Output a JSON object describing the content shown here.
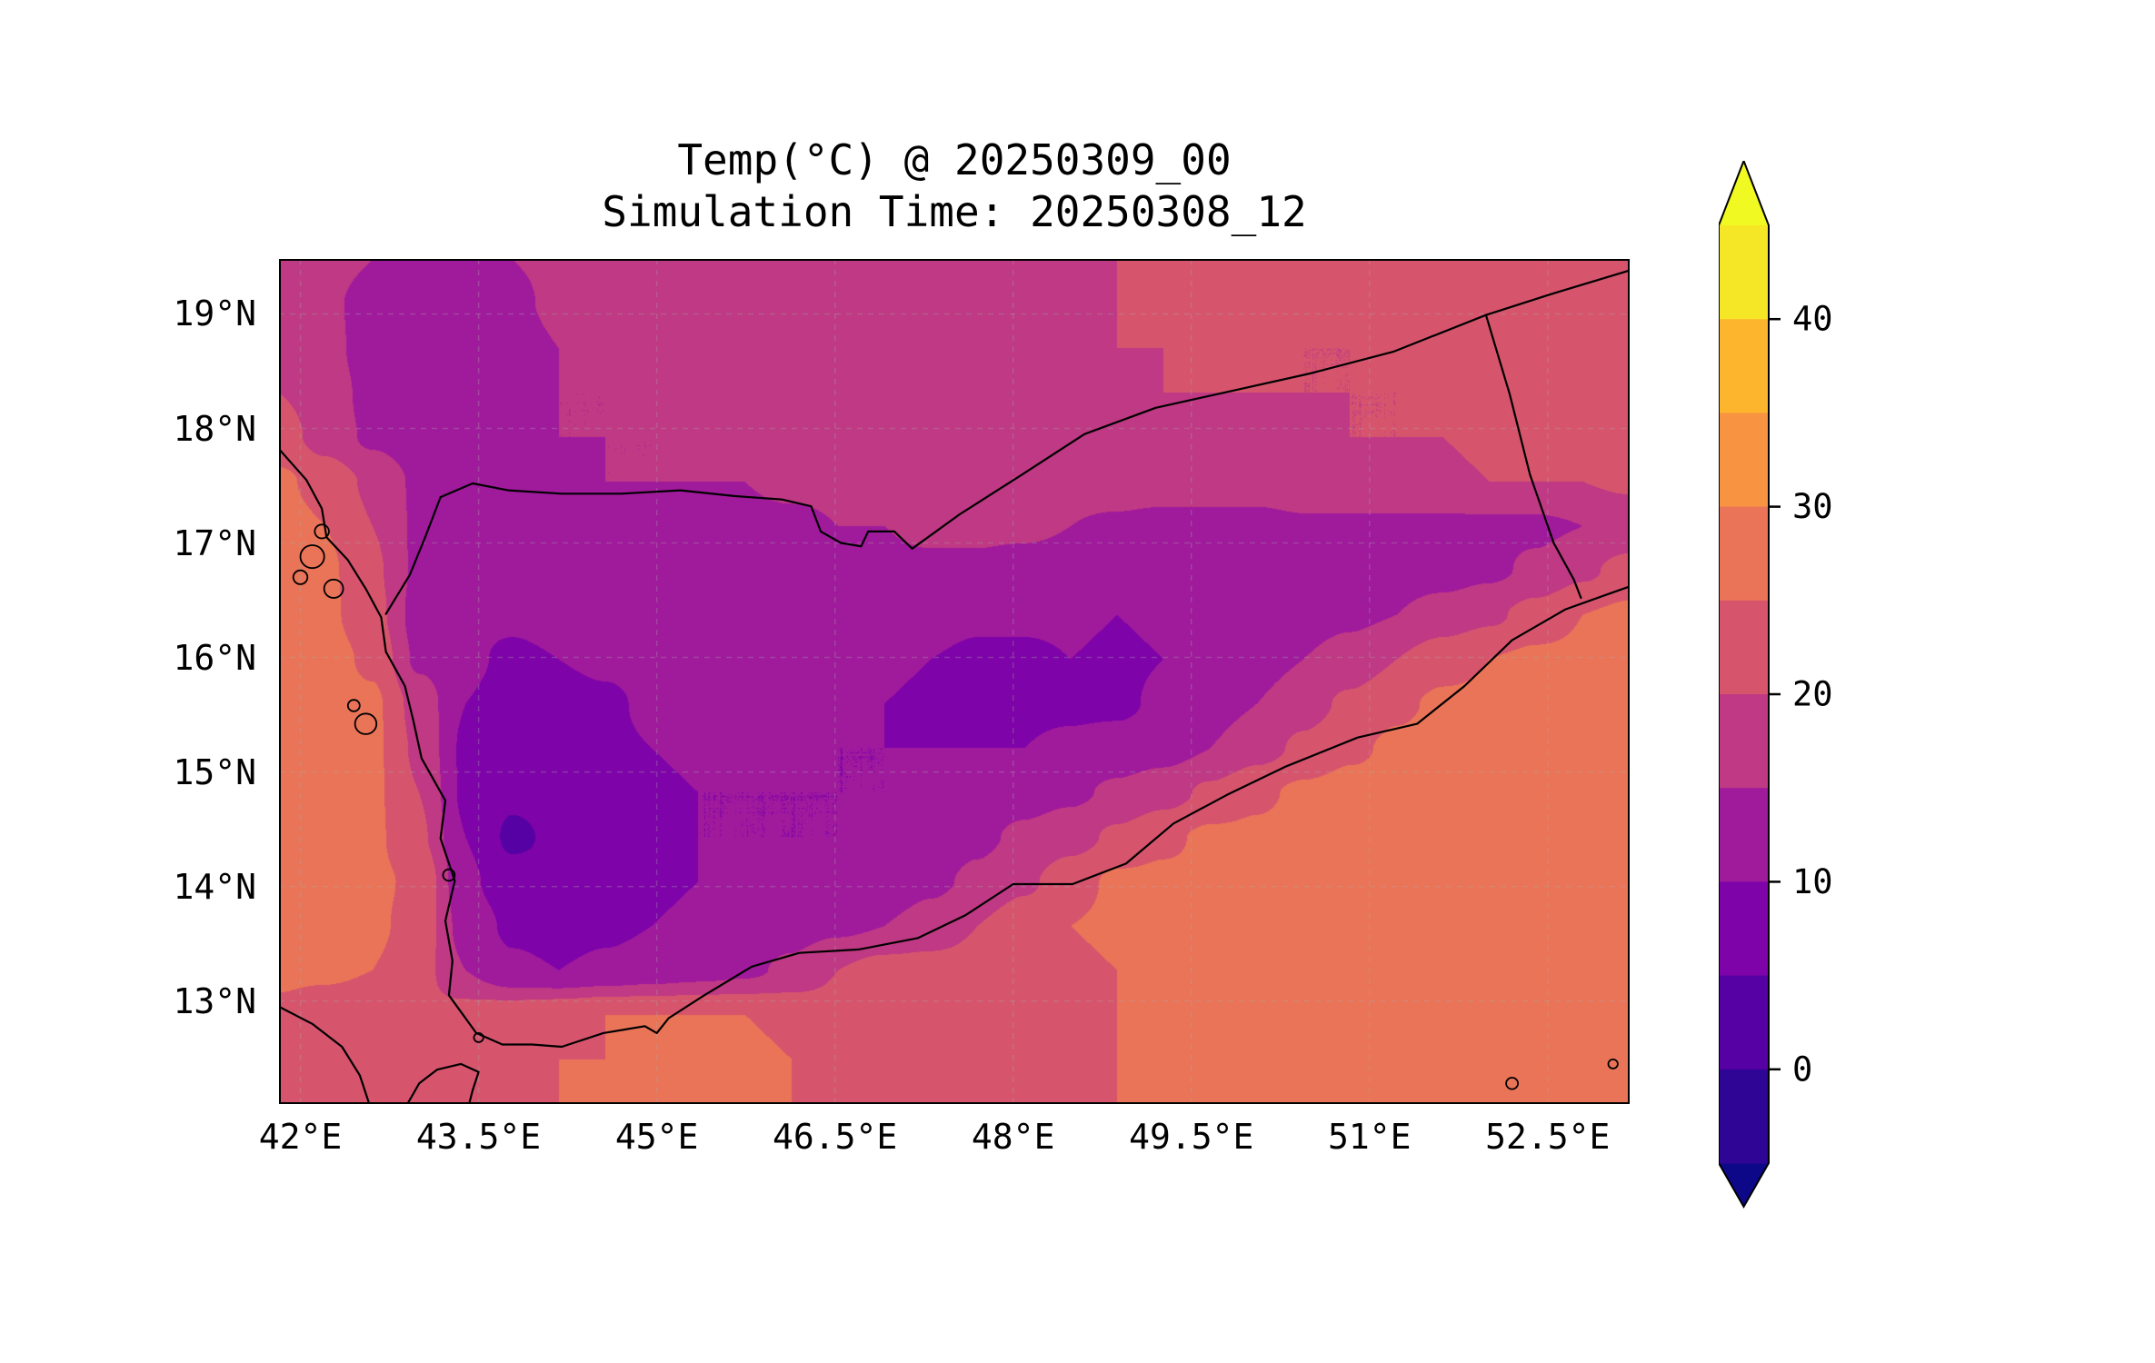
{
  "figure": {
    "title_line1": "Temp(°C) @ 20250309_00",
    "title_line2": "Simulation Time: 20250308_12"
  },
  "chart_data": {
    "type": "heatmap",
    "title": "Temp(°C) @ 20250309_00",
    "subtitle": "Simulation Time: 20250308_12",
    "projection": "lon-lat map, filled temperature contours with coastlines and country borders",
    "lon_range": [
      41.82,
      53.19
    ],
    "lat_range": [
      12.1,
      19.48
    ],
    "x_ticks": [
      {
        "lon": 42.0,
        "label": "42°E"
      },
      {
        "lon": 43.5,
        "label": "43.5°E"
      },
      {
        "lon": 45.0,
        "label": "45°E"
      },
      {
        "lon": 46.5,
        "label": "46.5°E"
      },
      {
        "lon": 48.0,
        "label": "48°E"
      },
      {
        "lon": 49.5,
        "label": "49.5°E"
      },
      {
        "lon": 51.0,
        "label": "51°E"
      },
      {
        "lon": 52.5,
        "label": "52.5°E"
      }
    ],
    "y_ticks": [
      {
        "lat": 19.0,
        "label": "19°N"
      },
      {
        "lat": 18.0,
        "label": "18°N"
      },
      {
        "lat": 17.0,
        "label": "17°N"
      },
      {
        "lat": 16.0,
        "label": "16°N"
      },
      {
        "lat": 15.0,
        "label": "15°N"
      },
      {
        "lat": 14.0,
        "label": "14°N"
      },
      {
        "lat": 13.0,
        "label": "13°N"
      }
    ],
    "levels": [
      -5,
      0,
      5,
      10,
      15,
      20,
      25,
      30,
      35,
      40,
      45
    ],
    "band_colors": [
      "#2f0596",
      "#5601a4",
      "#7e03a8",
      "#a01a9c",
      "#bf3984",
      "#d6556d",
      "#ea7457",
      "#f89441",
      "#fdb52e",
      "#f6e726"
    ],
    "under_color": "#0d0887",
    "over_color": "#f0f921",
    "colorbar_ticks": [
      0,
      10,
      20,
      30,
      40
    ],
    "colorbar_tick_labels": [
      "0",
      "10",
      "20",
      "30",
      "40"
    ],
    "grid": {
      "nx": 30,
      "ny": 20,
      "note": "temperature °C, rows north(19.48N) to south(12.10N), cols west(41.82E) to east(53.19E)",
      "values": [
        [
          18,
          17,
          15,
          13,
          13,
          15,
          16,
          17,
          17,
          17,
          17,
          17,
          17,
          18,
          18,
          19,
          19,
          20,
          20,
          21,
          21,
          21,
          22,
          21,
          21,
          22,
          22,
          22,
          22,
          22
        ],
        [
          18,
          16,
          13,
          11,
          12,
          14,
          16,
          16,
          16,
          17,
          17,
          17,
          17,
          17,
          18,
          18,
          19,
          19,
          20,
          21,
          22,
          21,
          21,
          20,
          20,
          21,
          22,
          22,
          22,
          22
        ],
        [
          19,
          17,
          12,
          10,
          11,
          13,
          15,
          16,
          16,
          16,
          16,
          16,
          17,
          17,
          18,
          18,
          19,
          19,
          20,
          20,
          21,
          21,
          20,
          20,
          21,
          21,
          21,
          22,
          22,
          22
        ],
        [
          20,
          18,
          13,
          11,
          12,
          14,
          15,
          15,
          16,
          16,
          16,
          16,
          16,
          17,
          17,
          18,
          18,
          19,
          19,
          20,
          20,
          20,
          20,
          20,
          20,
          21,
          21,
          21,
          22,
          22
        ],
        [
          22,
          18,
          14,
          12,
          13,
          14,
          15,
          15,
          15,
          16,
          16,
          16,
          16,
          16,
          17,
          17,
          18,
          18,
          19,
          19,
          19,
          19,
          19,
          20,
          20,
          20,
          21,
          21,
          21,
          21
        ],
        [
          26,
          23,
          19,
          14,
          13,
          13,
          14,
          15,
          15,
          15,
          15,
          16,
          16,
          16,
          16,
          17,
          17,
          17,
          18,
          18,
          18,
          18,
          19,
          19,
          19,
          19,
          20,
          20,
          20,
          21
        ],
        [
          27,
          25,
          20,
          14,
          12,
          13,
          14,
          14,
          13,
          13,
          14,
          14,
          15,
          15,
          16,
          16,
          16,
          15,
          14,
          13,
          13,
          13,
          14,
          14,
          14,
          14,
          14,
          14,
          15,
          16
        ],
        [
          27,
          26,
          21,
          14,
          12,
          12,
          13,
          13,
          12,
          13,
          14,
          14,
          14,
          14,
          14,
          14,
          13,
          13,
          12,
          12,
          12,
          12,
          13,
          13,
          13,
          13,
          14,
          16,
          19,
          22
        ],
        [
          27,
          26,
          22,
          13,
          11,
          11,
          12,
          12,
          12,
          13,
          14,
          14,
          14,
          13,
          12,
          11,
          11,
          11,
          10,
          11,
          12,
          12,
          13,
          14,
          15,
          17,
          19,
          22,
          25,
          26
        ],
        [
          26,
          27,
          24,
          14,
          11,
          9,
          10,
          11,
          12,
          12,
          13,
          13,
          12,
          11,
          10,
          9,
          9,
          10,
          9,
          10,
          12,
          13,
          15,
          17,
          20,
          23,
          25,
          26,
          26,
          26
        ],
        [
          27,
          27,
          26,
          18,
          10,
          8,
          8,
          9,
          11,
          12,
          12,
          12,
          11,
          10,
          9,
          9,
          9,
          9,
          9,
          11,
          13,
          15,
          18,
          21,
          24,
          26,
          26,
          26,
          26,
          26
        ],
        [
          27,
          27,
          26,
          19,
          9,
          7,
          8,
          9,
          10,
          11,
          11,
          11,
          10,
          10,
          10,
          10,
          10,
          11,
          12,
          13,
          15,
          18,
          21,
          24,
          26,
          27,
          27,
          27,
          26,
          26
        ],
        [
          27,
          27,
          26,
          20,
          9,
          6,
          7,
          8,
          9,
          10,
          10,
          10,
          10,
          10,
          11,
          12,
          13,
          14,
          16,
          18,
          21,
          24,
          26,
          27,
          27,
          27,
          27,
          27,
          26,
          26
        ],
        [
          27,
          27,
          26,
          21,
          10,
          4,
          6,
          8,
          9,
          10,
          10,
          10,
          10,
          11,
          12,
          14,
          16,
          18,
          21,
          24,
          26,
          26,
          27,
          27,
          27,
          27,
          27,
          27,
          26,
          26
        ],
        [
          26,
          27,
          26,
          24,
          11,
          7,
          6,
          8,
          9,
          10,
          11,
          11,
          11,
          12,
          14,
          16,
          19,
          23,
          26,
          26,
          26,
          27,
          27,
          27,
          27,
          26,
          26,
          26,
          26,
          26
        ],
        [
          26,
          26,
          26,
          23,
          13,
          9,
          8,
          9,
          10,
          11,
          12,
          13,
          14,
          15,
          17,
          20,
          23,
          25,
          26,
          26,
          26,
          26,
          26,
          26,
          26,
          26,
          26,
          26,
          26,
          26
        ],
        [
          26,
          26,
          25,
          22,
          15,
          11,
          10,
          11,
          12,
          13,
          14,
          16,
          20,
          22,
          22,
          22,
          23,
          24,
          25,
          26,
          26,
          26,
          26,
          26,
          26,
          26,
          26,
          26,
          26,
          26
        ],
        [
          24,
          22,
          21,
          21,
          22,
          23,
          24,
          25,
          25,
          25,
          25,
          24,
          22,
          21,
          21,
          22,
          23,
          24,
          25,
          26,
          26,
          26,
          26,
          26,
          26,
          26,
          26,
          26,
          26,
          26
        ],
        [
          23,
          21,
          20,
          21,
          23,
          24,
          25,
          25,
          26,
          26,
          26,
          25,
          23,
          22,
          22,
          22,
          23,
          24,
          25,
          26,
          26,
          26,
          26,
          26,
          26,
          26,
          26,
          26,
          26,
          26
        ],
        [
          22,
          21,
          20,
          21,
          23,
          24,
          25,
          26,
          26,
          26,
          26,
          25,
          24,
          23,
          22,
          23,
          23,
          24,
          25,
          25,
          26,
          26,
          26,
          26,
          26,
          26,
          26,
          26,
          26,
          26
        ]
      ]
    },
    "coastlines": [
      [
        [
          41.82,
          17.82
        ],
        [
          42.05,
          17.55
        ],
        [
          42.18,
          17.3
        ],
        [
          42.22,
          17.05
        ],
        [
          42.4,
          16.85
        ],
        [
          42.55,
          16.6
        ],
        [
          42.68,
          16.35
        ],
        [
          42.72,
          16.05
        ],
        [
          42.88,
          15.75
        ],
        [
          42.95,
          15.45
        ],
        [
          43.02,
          15.12
        ],
        [
          43.22,
          14.75
        ],
        [
          43.18,
          14.42
        ],
        [
          43.3,
          14.05
        ],
        [
          43.22,
          13.7
        ],
        [
          43.28,
          13.35
        ],
        [
          43.25,
          13.05
        ],
        [
          43.48,
          12.72
        ],
        [
          43.7,
          12.62
        ],
        [
          43.95,
          12.62
        ],
        [
          44.2,
          12.6
        ],
        [
          44.55,
          12.72
        ],
        [
          44.9,
          12.78
        ],
        [
          45.0,
          12.72
        ],
        [
          45.1,
          12.85
        ],
        [
          45.4,
          13.05
        ],
        [
          45.8,
          13.3
        ],
        [
          46.2,
          13.42
        ],
        [
          46.7,
          13.45
        ],
        [
          47.2,
          13.55
        ],
        [
          47.6,
          13.75
        ],
        [
          48.0,
          14.02
        ],
        [
          48.5,
          14.02
        ],
        [
          48.95,
          14.2
        ],
        [
          49.35,
          14.55
        ],
        [
          49.8,
          14.8
        ],
        [
          50.3,
          15.05
        ],
        [
          50.9,
          15.3
        ],
        [
          51.4,
          15.42
        ],
        [
          51.8,
          15.75
        ],
        [
          52.2,
          16.15
        ],
        [
          52.65,
          16.42
        ],
        [
          53.0,
          16.55
        ],
        [
          53.19,
          16.62
        ]
      ],
      [
        [
          41.82,
          12.95
        ],
        [
          42.1,
          12.8
        ],
        [
          42.35,
          12.6
        ],
        [
          42.5,
          12.35
        ],
        [
          42.58,
          12.1
        ]
      ],
      [
        [
          42.9,
          12.1
        ],
        [
          43.0,
          12.28
        ],
        [
          43.15,
          12.4
        ],
        [
          43.35,
          12.45
        ],
        [
          43.5,
          12.38
        ],
        [
          43.45,
          12.22
        ],
        [
          43.42,
          12.1
        ]
      ]
    ],
    "borders": [
      [
        [
          42.72,
          16.38
        ],
        [
          42.92,
          16.72
        ],
        [
          43.05,
          17.05
        ],
        [
          43.18,
          17.4
        ]
      ],
      [
        [
          43.18,
          17.4
        ],
        [
          43.45,
          17.52
        ],
        [
          43.75,
          17.46
        ],
        [
          44.2,
          17.43
        ],
        [
          44.7,
          17.43
        ],
        [
          45.2,
          17.46
        ],
        [
          45.65,
          17.41
        ],
        [
          46.05,
          17.38
        ],
        [
          46.3,
          17.32
        ],
        [
          46.38,
          17.1
        ],
        [
          46.55,
          17.0
        ],
        [
          46.72,
          16.97
        ],
        [
          46.78,
          17.1
        ],
        [
          47.0,
          17.1
        ],
        [
          47.15,
          16.95
        ],
        [
          47.55,
          17.25
        ],
        [
          48.05,
          17.58
        ],
        [
          48.6,
          17.95
        ],
        [
          49.2,
          18.18
        ],
        [
          49.85,
          18.33
        ],
        [
          50.5,
          18.48
        ],
        [
          51.2,
          18.67
        ],
        [
          51.98,
          18.99
        ]
      ],
      [
        [
          51.98,
          18.99
        ],
        [
          52.55,
          19.18
        ],
        [
          53.19,
          19.38
        ]
      ],
      [
        [
          51.98,
          18.99
        ],
        [
          52.18,
          18.3
        ],
        [
          52.35,
          17.6
        ],
        [
          52.55,
          17.0
        ],
        [
          52.72,
          16.68
        ],
        [
          52.78,
          16.52
        ]
      ]
    ],
    "islands": [
      [
        42.1,
        16.88,
        0.1
      ],
      [
        42.0,
        16.7,
        0.06
      ],
      [
        42.28,
        16.6,
        0.08
      ],
      [
        42.18,
        17.1,
        0.06
      ],
      [
        42.55,
        15.42,
        0.09
      ],
      [
        42.45,
        15.58,
        0.05
      ],
      [
        43.25,
        14.1,
        0.05
      ],
      [
        43.5,
        12.68,
        0.04
      ],
      [
        52.2,
        12.28,
        0.05
      ],
      [
        53.05,
        12.45,
        0.04
      ]
    ]
  }
}
